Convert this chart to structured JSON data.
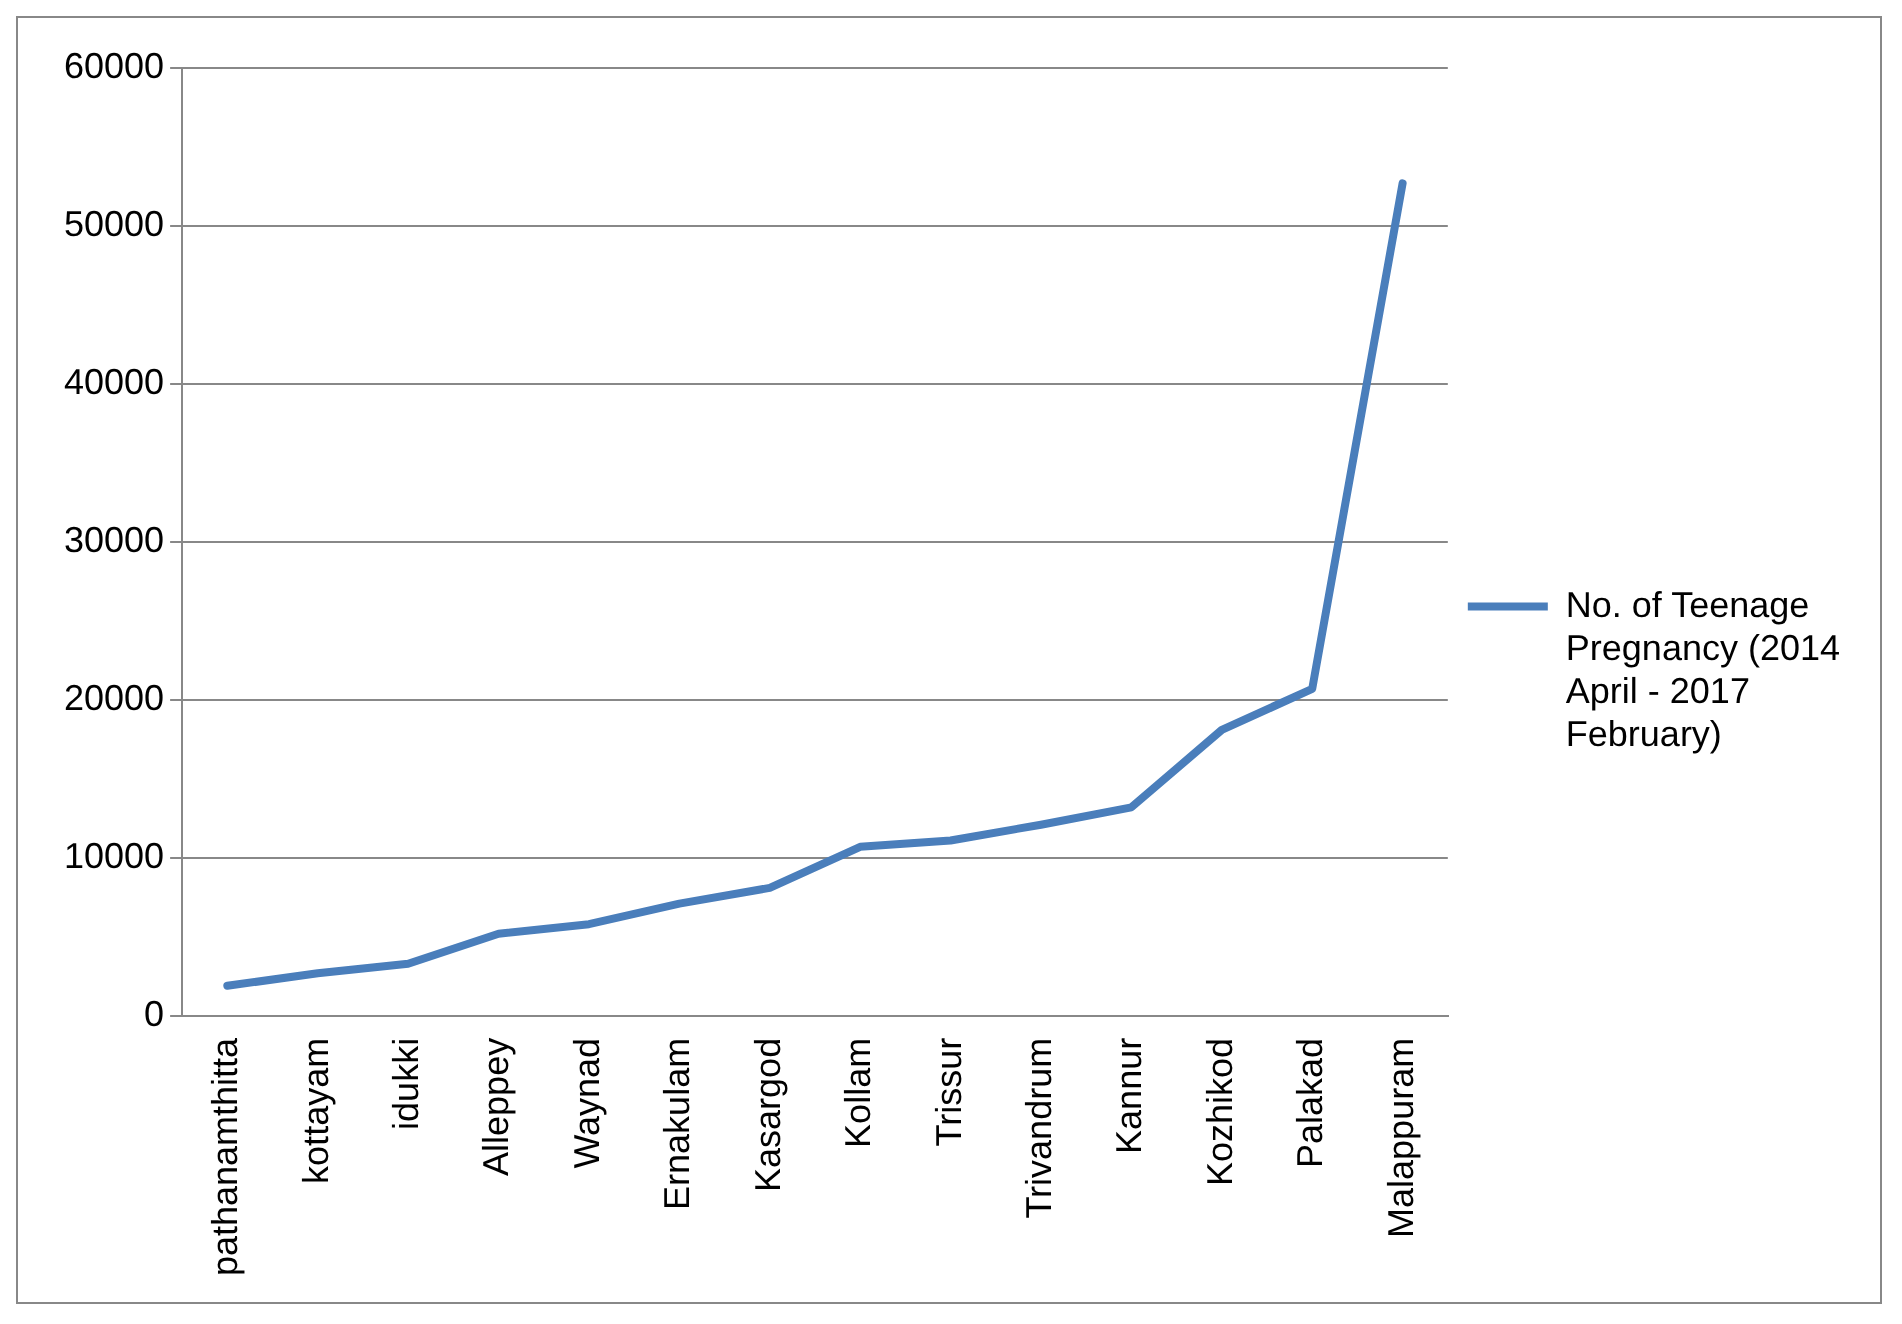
{
  "chart_data": {
    "type": "line",
    "categories": [
      "pathanamthitta",
      "kottayam",
      "idukki",
      "Alleppey",
      "Waynad",
      "Ernakulam",
      "Kasargod",
      "Kollam",
      "Trissur",
      "Trivandrum",
      "Kannur",
      "Kozhikod",
      "Palakad",
      "Malappuram"
    ],
    "series": [
      {
        "name": "No. of Teenage Pregnancy (2014 April - 2017 February)",
        "color": "#4a7ebb",
        "values": [
          1900,
          2700,
          3300,
          5200,
          5800,
          7100,
          8100,
          10700,
          11100,
          12100,
          13200,
          18100,
          20700,
          52700
        ]
      }
    ],
    "ylim": [
      0,
      60000
    ],
    "yticks": [
      0,
      10000,
      20000,
      30000,
      40000,
      50000,
      60000
    ],
    "grid": "y",
    "legend": "right",
    "marker": "none",
    "line_style": "solid"
  }
}
